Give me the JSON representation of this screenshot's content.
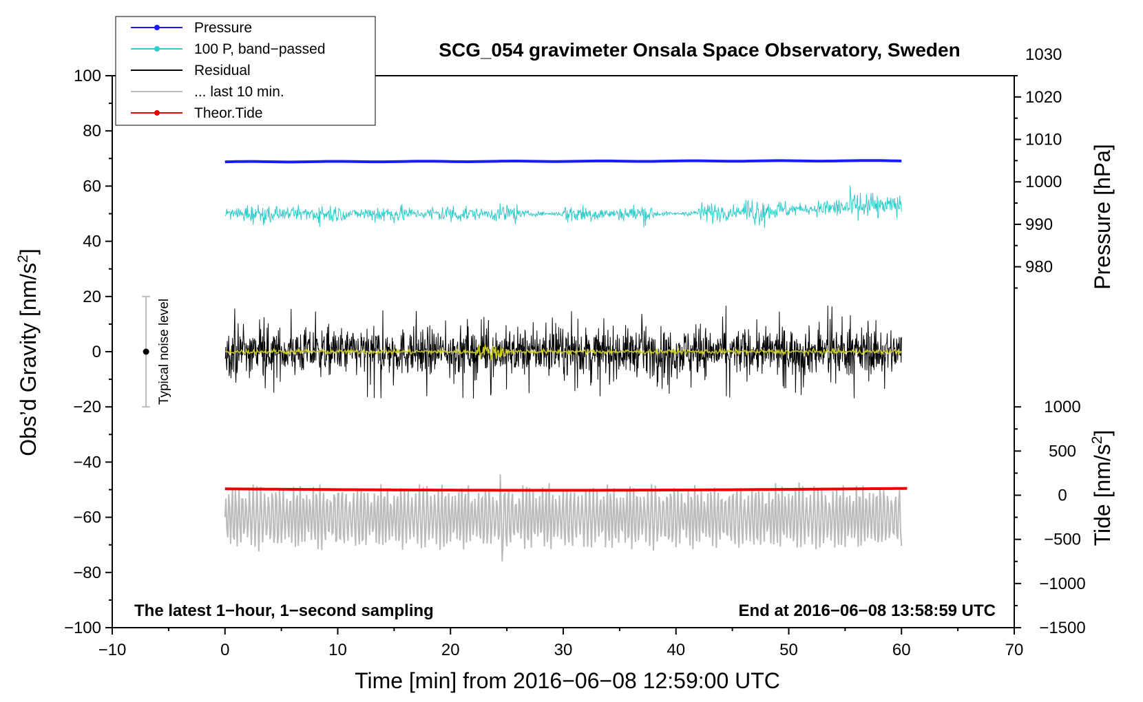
{
  "chart_data": {
    "type": "line",
    "title": "SCG_054 gravimeter Onsala Space Observatory, Sweden",
    "xlabel": "Time [min] from 2016−06−08 12:59:00 UTC",
    "ylabel_left": "Obs’d Gravity [nm/s",
    "ylabel_left_sup": "2",
    "ylabel_left_close": "]",
    "ylabel_right_pressure": "Pressure [hPa]",
    "ylabel_right_tide": "Tide [nm/s",
    "ylabel_right_tide_sup": "2",
    "ylabel_right_tide_close": "]",
    "xlim": [
      -10,
      70
    ],
    "ylim_left": [
      -100,
      100
    ],
    "x_ticks": [
      "−10",
      "0",
      "10",
      "20",
      "30",
      "40",
      "50",
      "60",
      "70"
    ],
    "y_ticks_left": [
      "−100",
      "−80",
      "−60",
      "−40",
      "−20",
      "0",
      "20",
      "40",
      "60",
      "80",
      "100"
    ],
    "pressure_ticks": [
      "980",
      "990",
      "1000",
      "1010",
      "1020",
      "1030"
    ],
    "pressure_tick_values": [
      980,
      990,
      1000,
      1010,
      1020,
      1030
    ],
    "pressure_axis_map": {
      "hpa_at_gravity_0": 960,
      "hpa_per_gravity_unit": 0.65
    },
    "tide_ticks": [
      "−1500",
      "−1000",
      "−500",
      "0",
      "500",
      "1000"
    ],
    "tide_tick_values": [
      -1500,
      -1000,
      -500,
      0,
      500,
      1000
    ],
    "tide_axis_map": {
      "tide_at_gravity_minus100": -1500,
      "tide_per_gravity_unit": 31.25
    },
    "legend": [
      {
        "label": "Pressure",
        "color": "#1a1aff",
        "marker": true
      },
      {
        "label": "100 P, band−passed",
        "color": "#33cccc",
        "marker": true
      },
      {
        "label": "Residual",
        "color": "#000000",
        "marker": false
      },
      {
        "label": "... last 10 min.",
        "color": "#bbbbbb",
        "marker": false
      },
      {
        "label": "Theor.Tide",
        "color": "#ee0000",
        "marker": true
      }
    ],
    "series": [
      {
        "name": "Pressure",
        "color": "#1a1aff",
        "x_range": [
          0,
          60
        ],
        "y_start": 68.8,
        "y_end": 69.2,
        "wobble": 0.1
      },
      {
        "name": "100 P, band−passed",
        "color": "#33cccc",
        "x_range": [
          0,
          60
        ],
        "center_start": 50,
        "center_end": 53,
        "amplitude": 2.5
      },
      {
        "name": "Residual",
        "color": "#000000",
        "x_range": [
          0,
          60
        ],
        "center": 0,
        "amplitude": 6,
        "max_amplitude": 17
      },
      {
        "name": "Residual (smoothed)",
        "color": "#cccc22",
        "x_range": [
          0,
          60
        ],
        "center": 0,
        "amplitude": 1
      },
      {
        "name": "... last 10 min.",
        "color": "#bbbbbb",
        "x_range": [
          0,
          60
        ],
        "center": -60,
        "amplitude": 8
      },
      {
        "name": "Theor.Tide",
        "color": "#ee0000",
        "x_range": [
          0,
          60.5
        ],
        "y_start": -49.7,
        "y_mid": -50.3,
        "y_end": -49.5
      }
    ],
    "noise_bar": {
      "label": "Typical noise level",
      "x": -7,
      "y_center": 0,
      "y_range": [
        -20,
        20
      ]
    },
    "annotations": {
      "bottom_left": "The latest 1−hour, 1−second sampling",
      "bottom_right": "End at 2016−06−08 13:58:59 UTC"
    }
  }
}
